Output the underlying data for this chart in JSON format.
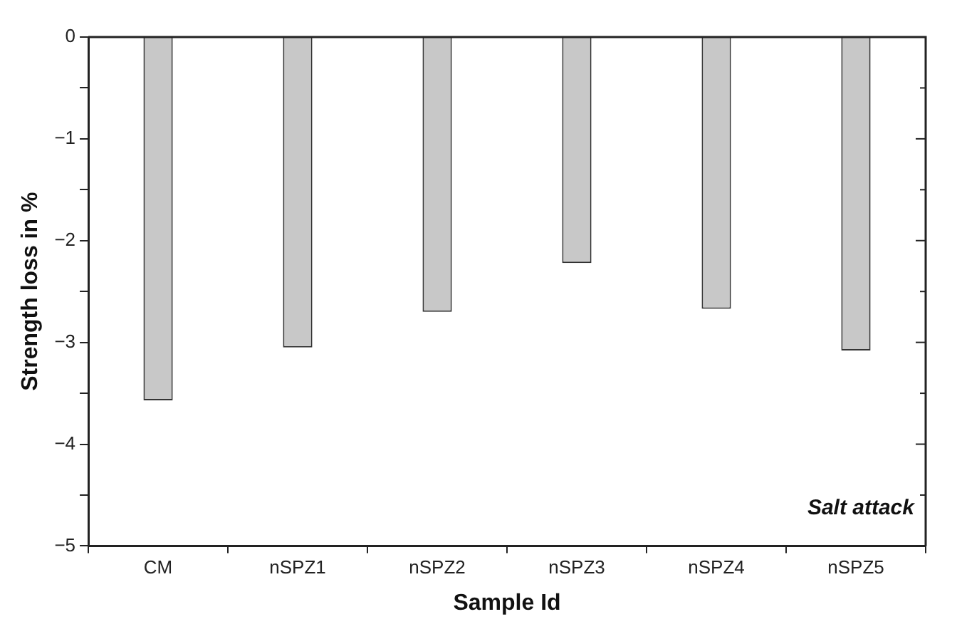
{
  "chart_data": {
    "type": "bar",
    "xlabel": "Sample Id",
    "ylabel": "Strength loss in %",
    "categories": [
      "CM",
      "nSPZ1",
      "nSPZ2",
      "nSPZ3",
      "nSPZ4",
      "nSPZ5"
    ],
    "values": [
      -3.57,
      -3.05,
      -2.7,
      -2.22,
      -2.67,
      -3.08
    ],
    "color": "#c8c8c8",
    "ylim": [
      -5,
      0
    ],
    "yticks": [
      {
        "value": -5,
        "label": "−5"
      },
      {
        "value": -4.5,
        "label": null
      },
      {
        "value": -4,
        "label": "−4"
      },
      {
        "value": -3.5,
        "label": null
      },
      {
        "value": -3,
        "label": "−3"
      },
      {
        "value": -2.5,
        "label": null
      },
      {
        "value": -2,
        "label": "−2"
      },
      {
        "value": -1.5,
        "label": null
      },
      {
        "value": -1,
        "label": "−1"
      },
      {
        "value": -0.5,
        "label": null
      },
      {
        "value": 0,
        "label": "0"
      }
    ],
    "annotations": [
      "Salt attack"
    ],
    "grid": false,
    "legend": false
  }
}
